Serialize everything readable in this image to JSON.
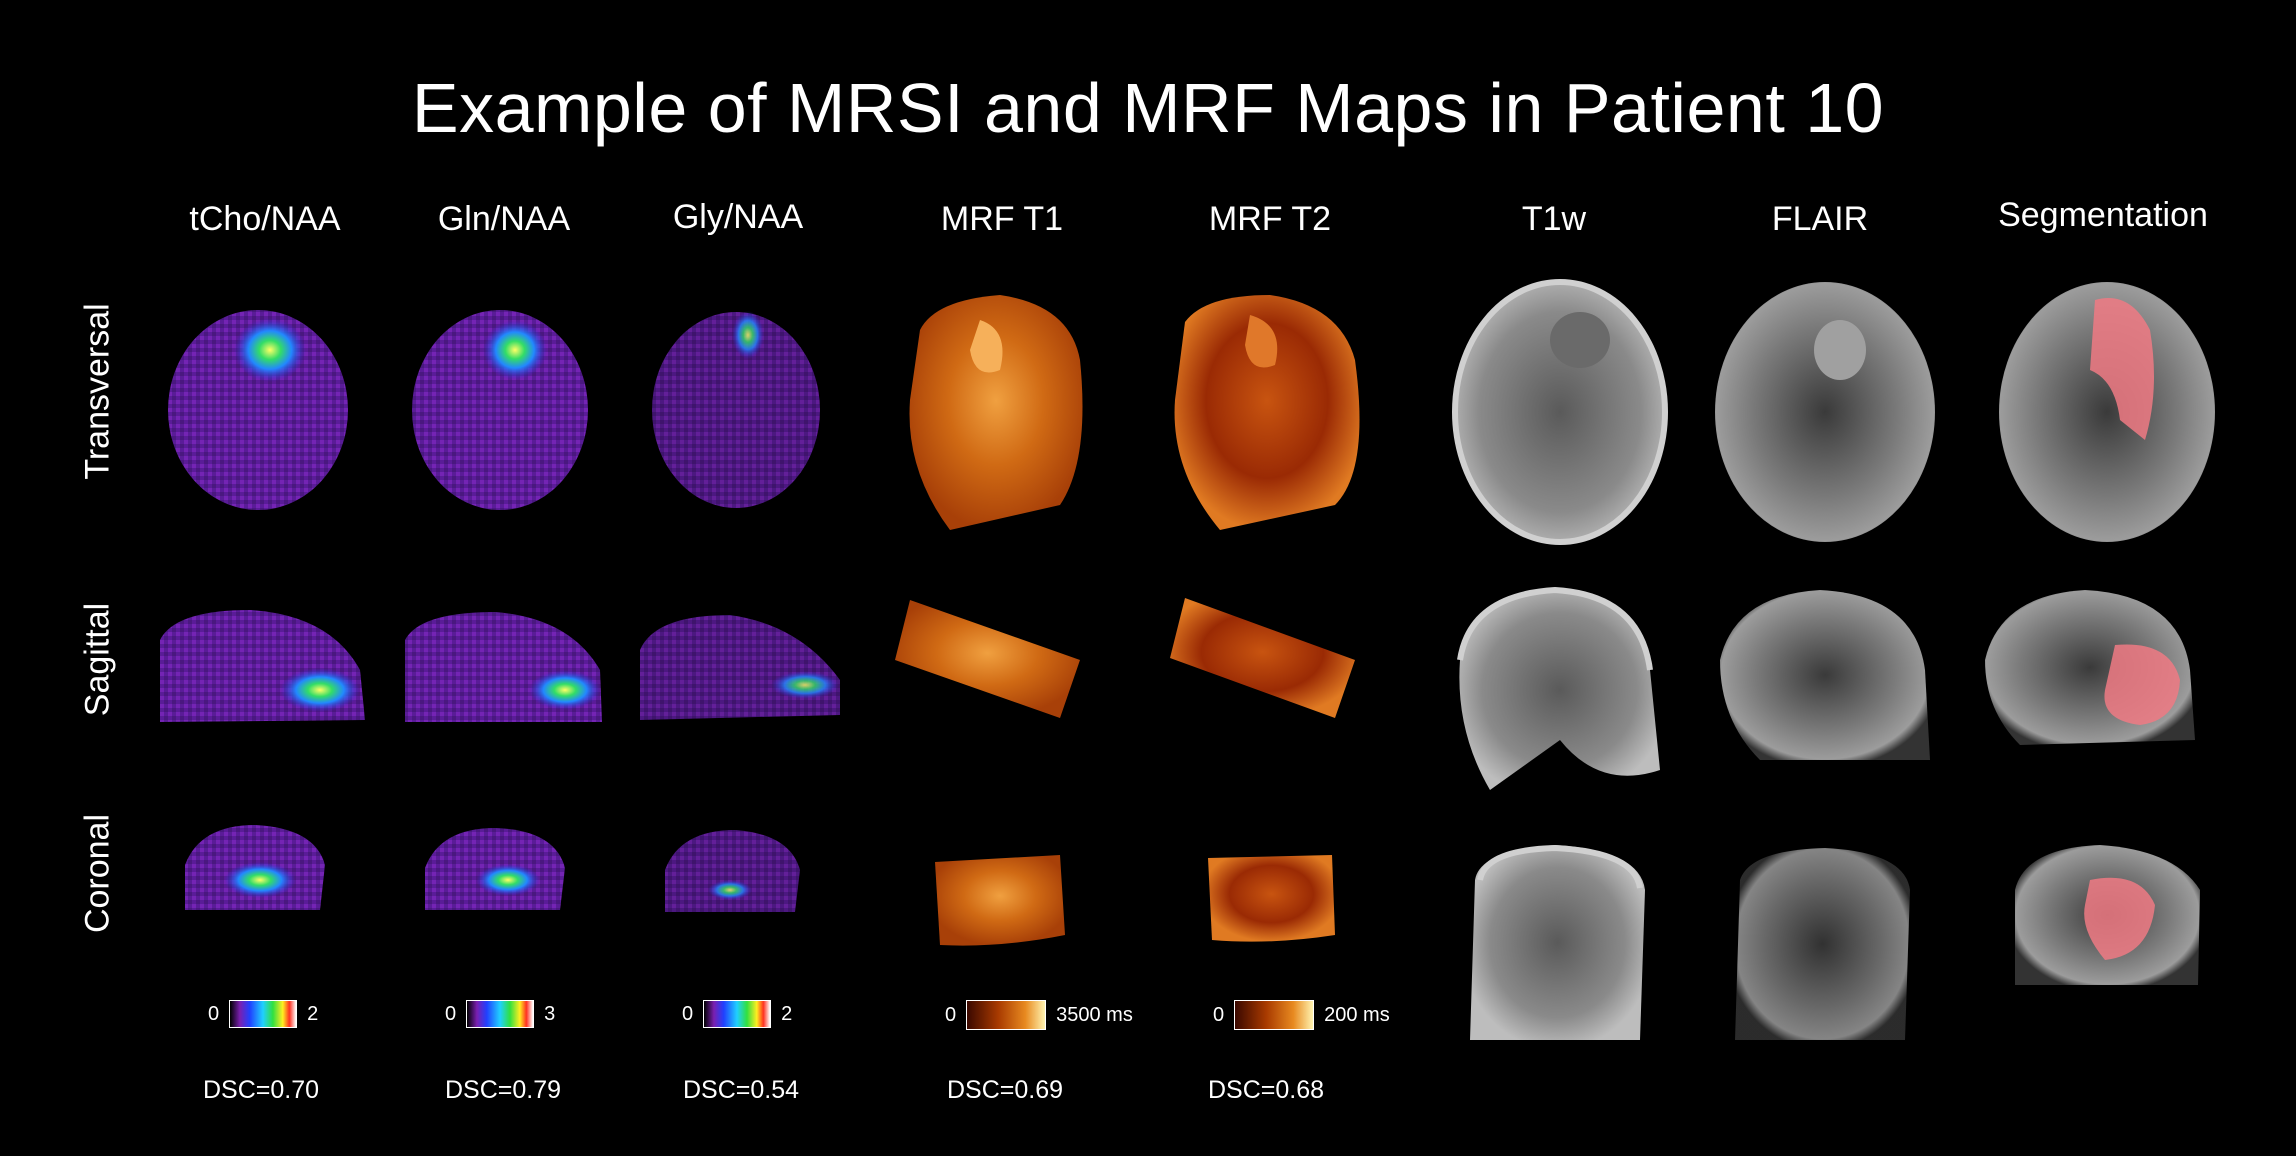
{
  "title": "Example of MRSI and MRF Maps in Patient 10",
  "columns": [
    "tCho/NAA",
    "Gln/NAA",
    "Gly/NAA",
    "MRF T1",
    "MRF T2",
    "T1w",
    "FLAIR",
    "Segmentation"
  ],
  "rows": [
    "Transversal",
    "Sagittal",
    "Coronal"
  ],
  "colorbars": [
    {
      "min": "0",
      "max": "2",
      "scale": "rainbow"
    },
    {
      "min": "0",
      "max": "3",
      "scale": "rainbow"
    },
    {
      "min": "0",
      "max": "2",
      "scale": "rainbow"
    },
    {
      "min": "0",
      "max": "3500 ms",
      "scale": "orange"
    },
    {
      "min": "0",
      "max": "200 ms",
      "scale": "orange"
    }
  ],
  "dsc": [
    "DSC=0.70",
    "DSC=0.79",
    "DSC=0.54",
    "DSC=0.69",
    "DSC=0.68"
  ],
  "colors": {
    "background": "#000000",
    "metabolite_base": "#6a1fa8",
    "mrf_orange": "#c25a0c",
    "segmentation": "#f07a84"
  }
}
